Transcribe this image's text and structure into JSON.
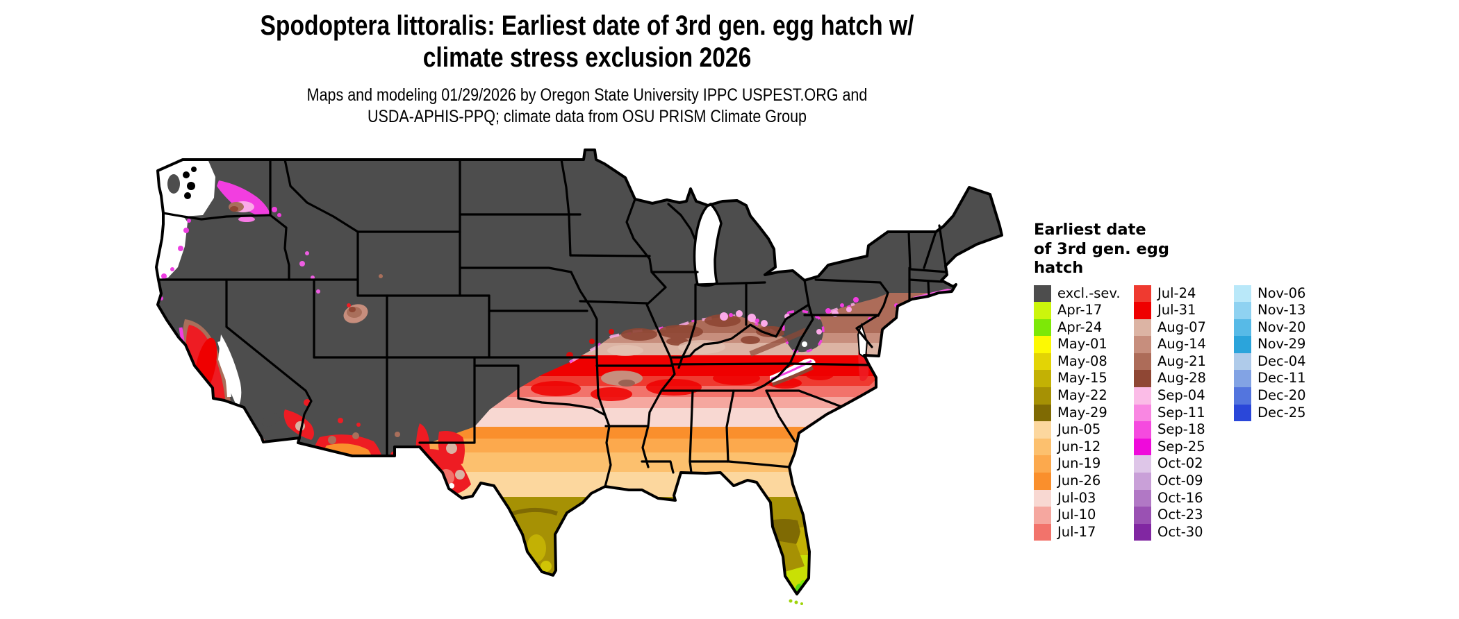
{
  "header": {
    "title_line1": "Spodoptera littoralis: Earliest date of 3rd gen. egg hatch w/",
    "title_line2": "climate stress exclusion 2026",
    "subtitle_line1": "Maps and modeling 01/29/2026 by Oregon State University IPPC USPEST.ORG and",
    "subtitle_line2": "USDA-APHIS-PPQ; climate data from OSU PRISM Climate Group"
  },
  "legend": {
    "title_line1": "Earliest date",
    "title_line2": "of 3rd gen. egg",
    "title_line3": "hatch",
    "columns": [
      [
        {
          "label": "excl.-sev.",
          "color": "#4d4d4d"
        },
        {
          "label": "Apr-17",
          "color": "#ccf50c"
        },
        {
          "label": "Apr-24",
          "color": "#7de807"
        },
        {
          "label": "May-01",
          "color": "#fdf903"
        },
        {
          "label": "May-08",
          "color": "#e3d405"
        },
        {
          "label": "May-15",
          "color": "#c3b104"
        },
        {
          "label": "May-22",
          "color": "#a69104"
        },
        {
          "label": "May-29",
          "color": "#7f6a03"
        },
        {
          "label": "Jun-05",
          "color": "#fcd79e"
        },
        {
          "label": "Jun-12",
          "color": "#fcc06e"
        },
        {
          "label": "Jun-19",
          "color": "#fca94d"
        },
        {
          "label": "Jun-26",
          "color": "#fa8f2c"
        },
        {
          "label": "Jul-03",
          "color": "#f8d8d2"
        },
        {
          "label": "Jul-10",
          "color": "#f5a79f"
        },
        {
          "label": "Jul-17",
          "color": "#f2736b"
        }
      ],
      [
        {
          "label": "Jul-24",
          "color": "#ef3a30"
        },
        {
          "label": "Jul-31",
          "color": "#ef0000"
        },
        {
          "label": "Aug-07",
          "color": "#dcb4a4"
        },
        {
          "label": "Aug-14",
          "color": "#c78e7d"
        },
        {
          "label": "Aug-21",
          "color": "#ad6c59"
        },
        {
          "label": "Aug-28",
          "color": "#8f4734"
        },
        {
          "label": "Sep-04",
          "color": "#fbbce7"
        },
        {
          "label": "Sep-11",
          "color": "#f987e2"
        },
        {
          "label": "Sep-18",
          "color": "#f54adf"
        },
        {
          "label": "Sep-25",
          "color": "#ef0adb"
        },
        {
          "label": "Oct-02",
          "color": "#dec6e8"
        },
        {
          "label": "Oct-09",
          "color": "#c9a0d8"
        },
        {
          "label": "Oct-16",
          "color": "#b178c5"
        },
        {
          "label": "Oct-23",
          "color": "#9a51b3"
        },
        {
          "label": "Oct-30",
          "color": "#8127a2"
        }
      ],
      [
        {
          "label": "Nov-06",
          "color": "#b9e8f9"
        },
        {
          "label": "Nov-13",
          "color": "#8fd2f1"
        },
        {
          "label": "Nov-20",
          "color": "#57bae7"
        },
        {
          "label": "Nov-29",
          "color": "#2ba4db"
        },
        {
          "label": "Dec-04",
          "color": "#afcbea"
        },
        {
          "label": "Dec-11",
          "color": "#82a3e4"
        },
        {
          "label": "Dec-20",
          "color": "#5375de"
        },
        {
          "label": "Dec-25",
          "color": "#2a47d9"
        }
      ]
    ]
  }
}
